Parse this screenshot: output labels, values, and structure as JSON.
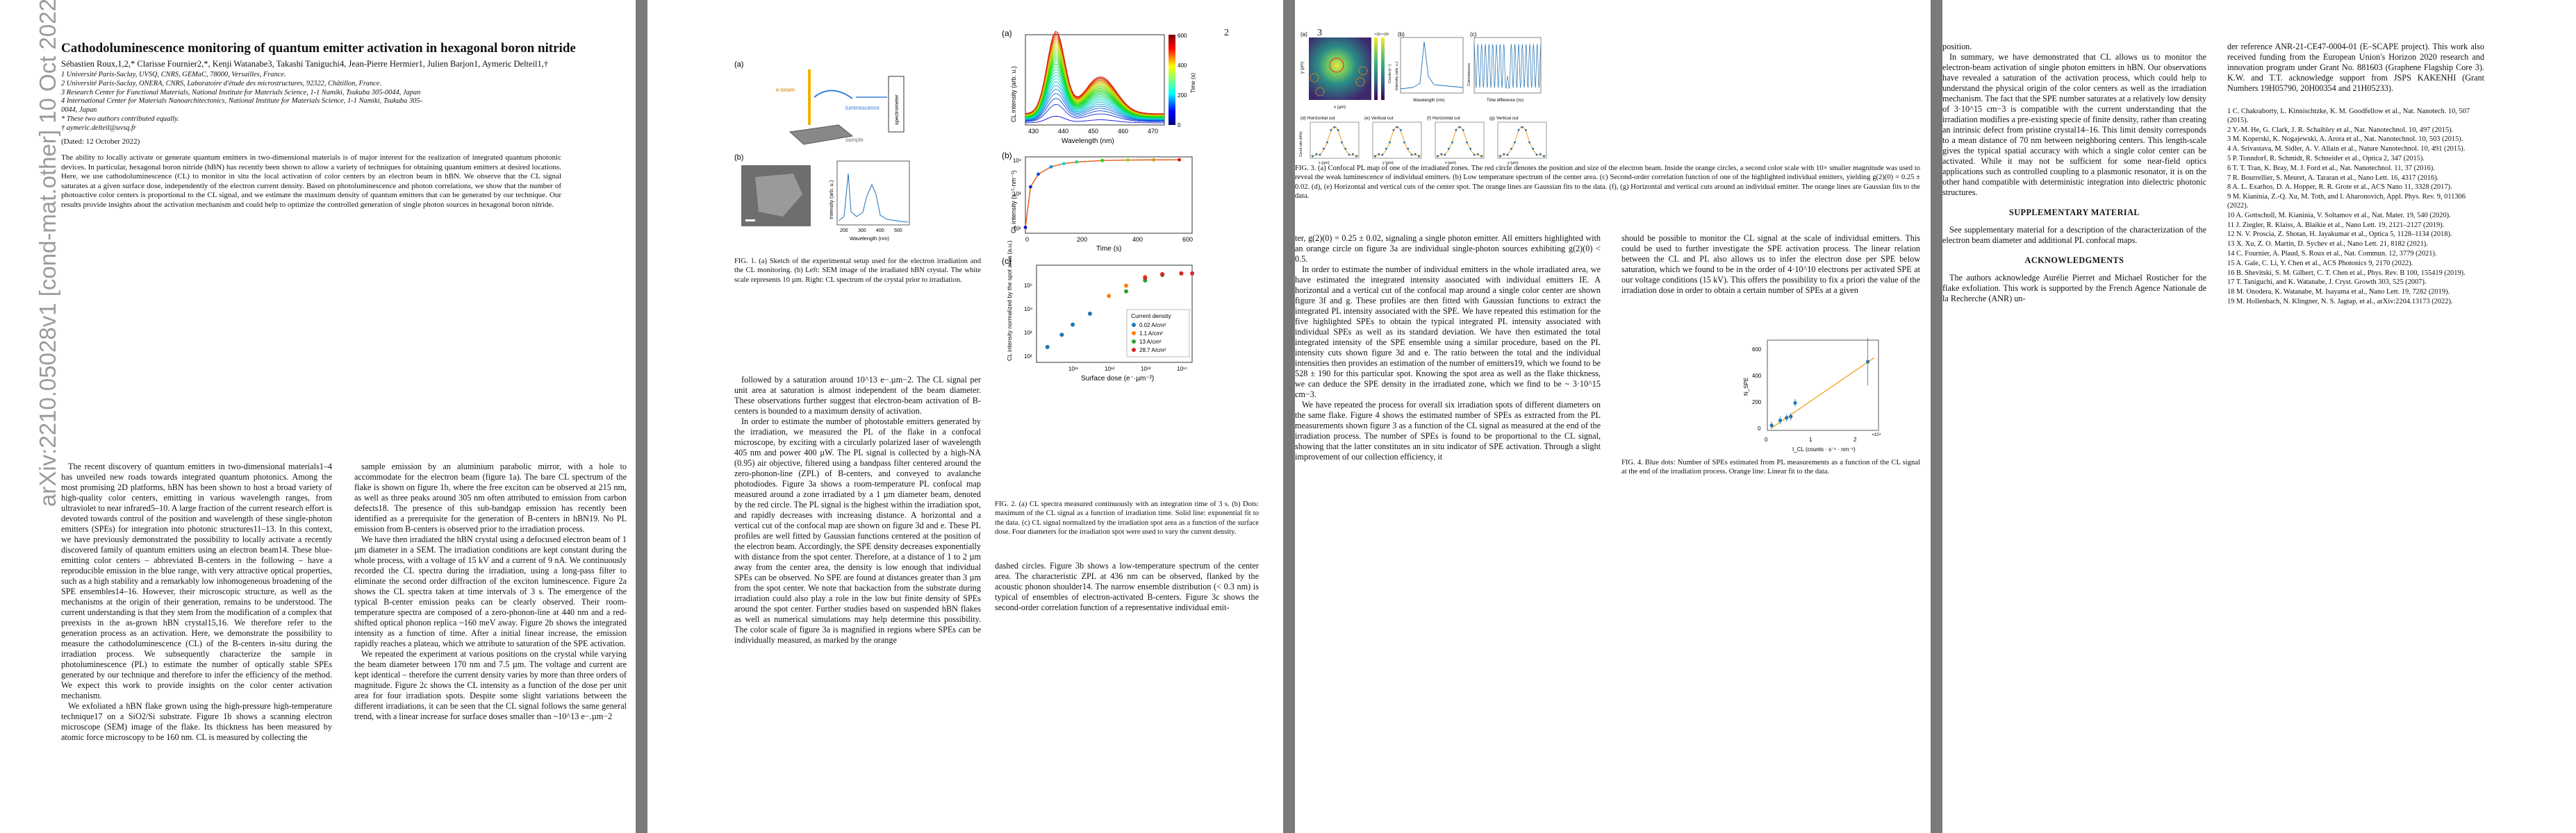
{
  "arxiv_stamp": "arXiv:2210.05028v1  [cond-mat.other]  10 Oct 2022",
  "page_numbers": [
    "2",
    "3"
  ],
  "title": "Cathodoluminescence monitoring of quantum emitter activation in hexagonal boron nitride",
  "authors": "Sébastien Roux,1,2,* Clarisse Fournier2,*, Kenji Watanabe3, Takashi Taniguchi4, Jean-Pierre Hermier1, Julien Barjon1, Aymeric Delteil1,†",
  "affiliations": [
    "1 Université Paris-Saclay, UVSQ, CNRS, GEMaC, 78000, Versailles, France.",
    "2 Université Paris-Saclay, ONERA, CNRS, Laboratoire d'étude des microstructures, 92322, Châtillon, France.",
    "3 Research Center for Functional Materials, National Institute for Materials Science, 1-1 Namiki, Tsukuba 305-0044, Japan",
    "4 International Center for Materials Nanoarchitectonics, National Institute for Materials Science, 1-1 Namiki, Tsukuba 305-0044, Japan",
    "* These two authors contributed equally.",
    "† aymeric.delteil@uvsq.fr"
  ],
  "dated": "(Dated: 12 October 2022)",
  "abstract": "The ability to locally activate or generate quantum emitters in two-dimensional materials is of major interest for the realization of integrated quantum photonic devices. In particular, hexagonal boron nitride (hBN) has recently been shown to allow a variety of techniques for obtaining quantum emitters at desired locations. Here, we use cathodoluminescence (CL) to monitor in situ the local activation of color centers by an electron beam in hBN. We observe that the CL signal saturates at a given surface dose, independently of the electron current density. Based on photoluminescence and photon correlations, we show that the number of photoactive color centers is proportional to the CL signal, and we estimate the maximum density of quantum emitters that can be generated by our technique. Our results provide insights about the activation mechanism and could help to optimize the controlled generation of single photon sources in hexagonal boron nitride.",
  "body_col1": [
    "The recent discovery of quantum emitters in two-dimensional materials1–4 has unveiled new roads towards integrated quantum photonics. Among the most promising 2D platforms, hBN has been shown to host a broad variety of high-quality color centers, emitting in various wavelength ranges, from ultraviolet to near infrared5–10. A large fraction of the current research effort is devoted towards control of the position and wavelength of these single-photon emitters (SPEs) for integration into photonic structures11–13. In this context, we have previously demonstrated the possibility to locally activate a recently discovered family of quantum emitters using an electron beam14. These blue-emitting color centers – abbreviated B-centers in the following – have a reproducible emission in the blue range, with very attractive optical properties, such as a high stability and a remarkably low inhomogeneous broadening of the SPE ensembles14–16. However, their microscopic structure, as well as the mechanisms at the origin of their generation, remains to be understood. The current understanding is that they stem from the modification of a complex that preexists in the as-grown hBN crystal15,16. We therefore refer to the generation process as an activation. Here, we demonstrate the possibility to measure the cathodoluminescence (CL) of the B-centers in-situ during the irradiation process. We subsequently characterize the sample in photoluminescence (PL) to estimate the number of optically stable SPEs generated by our technique and therefore to infer the efficiency of the method. We expect this work to provide insights on the color center activation mechanism.",
    "We exfoliated a hBN flake grown using the high-pressure high-temperature technique17 on a SiO2/Si substrate. Figure 1b shows a scanning electron microscope (SEM) image of the flake. Its thickness has been measured by atomic force microscopy to be 160 nm. CL is measured by collecting the"
  ],
  "body_col2": [
    "sample emission by an aluminium parabolic mirror, with a hole to accommodate for the electron beam (figure 1a). The bare CL spectrum of the flake is shown on figure 1b, where the free exciton can be observed at 215 nm, as well as three peaks around 305 nm often attributed to emission from carbon defects18. The presence of this sub-bandgap emission has recently been identified as a prerequisite for the generation of B-centers in hBN19. No PL emission from B-centers is observed prior to the irradiation process.",
    "We have then irradiated the hBN crystal using a defocused electron beam of 1 µm diameter in a SEM. The irradiation conditions are kept constant during the whole process, with a voltage of 15 kV and a current of 9 nA. We continuously recorded the CL spectra during the irradiation, using a long-pass filter to eliminate the second order diffraction of the exciton luminescence. Figure 2a shows the CL spectra taken at time intervals of 3 s. The emergence of the typical B-center emission peaks can be clearly observed. Their room-temperature spectra are composed of a zero-phonon-line at 440 nm and a red-shifted optical phonon replica ~160 meV away. Figure 2b shows the integrated intensity as a function of time. After a initial linear increase, the emission rapidly reaches a plateau, which we attribute to saturation of the SPE activation.",
    "We repeated the experiment at various positions on the crystal while varying the beam diameter between 170 nm and 7.5 µm. The voltage and current are kept identical – therefore the current density varies by more than three orders of magnitude. Figure 2c shows the CL intensity as a function of the dose per unit area for four irradiation spots. Despite some slight variations between the different irradiations, it can be seen that the CL signal follows the same general trend, with a linear increase for surface doses smaller than ~10^13 e−.µm−2"
  ],
  "fig1_caption": "FIG. 1. (a) Sketch of the experimental setup used for the electron irradiation and the CL monitoring. (b) Left: SEM image of the irradiated hBN crystal. The white scale represents 10 µm. Right: CL spectrum of the crystal prior to irradiation.",
  "fig1_labels": {
    "a": "(a)",
    "b": "(b)",
    "ebeam": "e-beam",
    "lum": "luminescence",
    "sample": "sample",
    "spectro": "spectrometer",
    "ylabel": "Intensity (arb. u.)",
    "xlabel": "Wavelength (nm)",
    "xticks": [
      "200",
      "300",
      "400",
      "500"
    ]
  },
  "body_col3": [
    "followed by a saturation around 10^13 e−.µm−2. The CL signal per unit area at saturation is almost independent of the beam diameter. These observations further suggest that electron-beam activation of B-centers is bounded to a maximum density of activation.",
    "In order to estimate the number of photostable emitters generated by the irradiation, we measured the PL of the flake in a confocal microscope, by exciting with a circularly polarized laser of wavelength 405 nm and power 400 µW. The PL signal is collected by a high-NA (0.95) air objective, filtered using a bandpass filter centered around the zero-phonon-line (ZPL) of B-centers, and conveyed to avalanche photodiodes. Figure 3a shows a room-temperature PL confocal map measured around a zone irradiated by a 1 µm diameter beam, denoted by the red circle. The PL signal is the highest within the irradiation spot, and rapidly decreases with increasing distance. A horizontal and a vertical cut of the confocal map are shown on figure 3d and e. These PL profiles are well fitted by Gaussian functions centered at the position of the electron beam. Accordingly, the SPE density decreases exponentially with distance from the spot center. Therefore, at a distance of 1 to 2 µm away from the center area, the density is low enough that individual SPEs can be observed. No SPE are found at distances greater than 3 µm from the spot center. We note that backaction from the substrate during irradiation could also play a role in the low but finite density of SPEs around the spot center. Further studies based on suspended hBN flakes as well as numerical simulations may help determine this possibility. The color scale of figure 3a is magnified in regions where SPEs can be individually measured, as marked by the orange"
  ],
  "fig2_caption": "FIG. 2. (a) CL spectra measured continuously with an integration time of 3 s. (b) Dots: maximum of the CL signal as a function of irradiation time. Solid line: exponential fit to the data. (c) CL signal normalized by the irradiation spot area as a function of the surface dose. Four diameters for the irradiation spot were used to vary the current density.",
  "page2_col4": [
    "dashed circles. Figure 3b shows a low-temperature spectrum of the center area. The characteristic ZPL at 436 nm can be observed, flanked by the acoustic phonon shoulder14. The narrow ensemble distribution (< 0.3 nm) is typical of ensembles of electron-activated B-centers. Figure 3c shows the second-order correlation function of a representative individual emit-"
  ],
  "fig3_caption": "FIG. 3. (a) Confocal PL map of one of the irradiated zones. The red circle denotes the position and size of the electron beam. Inside the orange circles, a second color scale with 10× smaller magnitude was used to reveal the weak luminescence of individual emitters. (b) Low temperature spectrum of the center area. (c) Second-order correlation function of one of the highlighted individual emitters, yielding g(2)(0) = 0.25 ± 0.02. (d), (e) Horizontal and vertical cuts of the center spot. The orange lines are Gaussian fits to the data. (f), (g) Horizontal and vertical cuts around an individual emitter. The orange lines are Gaussian fits to the data.",
  "body_col5": [
    "ter, g(2)(0) = 0.25 ± 0.02, signaling a single photon emitter. All emitters highlighted with an orange circle on figure 3a are individual single-photon sources exhibiting g(2)(0) < 0.5.",
    "In order to estimate the number of individual emitters in the whole irradiated area, we have estimated the integrated intensity associated with individual emitters IE. A horizontal and a vertical cut of the confocal map around a single color center are shown figure 3f and g. These profiles are then fitted with Gaussian functions to extract the integrated PL intensity associated with the SPE. We have repeated this estimation for the five highlighted SPEs to obtain the typical integrated PL intensity associated with individual SPEs as well as its standard deviation. We have then estimated the total integrated intensity of the SPE ensemble using a similar procedure, based on the PL intensity cuts shown figure 3d and e. The ratio between the total and the individual intensities then provides an estimation of the number of emitters19, which we found to be 528 ± 190 for this particular spot. Knowing the spot area as well as the flake thickness, we can deduce the SPE density in the irradiated zone, which we find to be ~ 3·10^15 cm−3.",
    "We have repeated the process for overall six irradiation spots of different diameters on the same flake. Figure 4 shows the estimated number of SPEs as extracted from the PL measurements shown figure 3 as a function of the CL signal as measured at the end of the irradiation process. The number of SPEs is found to be proportional to the CL signal, showing that the latter constitutes an in situ indicator of SPE activation. Through a slight improvement of our collection efficiency, it"
  ],
  "body_col6": [
    "should be possible to monitor the CL signal at the scale of individual emitters. This could be used to further investigate the SPE activation process. The linear relation between the CL and PL also allows us to infer the electron dose per SPE below saturation, which we found to be in the order of 4·10^10 electrons per activated SPE at our voltage conditions (15 kV). This offers the possibility to fix a priori the value of the irradiation dose in order to obtain a certain number of SPEs at a given"
  ],
  "fig4_caption": "FIG. 4. Blue dots: Number of SPEs estimated from PL measurements as a function of the CL signal at the end of the irradiation process. Orange line: Linear fit to the data.",
  "page3_colA": [
    "position.",
    "In summary, we have demonstrated that CL allows us to monitor the electron-beam activation of single photon emitters in hBN. Our observations have revealed a saturation of the activation process, which could help to understand the physical origin of the color centers as well as the irradiation mechanism. The fact that the SPE number saturates at a relatively low density of 3·10^15 cm−3 is compatible with the current understanding that the irradiation modifies a pre-existing specie of finite density, rather than creating an intrinsic defect from pristine crystal14–16. This limit density corresponds to a mean distance of 70 nm between neighboring centers. This length-scale gives the typical spatial accuracy with which a single color center can be activated. While it may not be sufficient for some near-field optics applications such as controlled coupling to a plasmonic resonator, it is on the other hand compatible with deterministic integration into dielectric photonic structures."
  ],
  "supp_heading": "SUPPLEMENTARY MATERIAL",
  "supp_text": "See supplementary material for a description of the characterization of the electron beam diameter and additional PL confocal maps.",
  "ack_heading": "ACKNOWLEDGMENTS",
  "ack_text": "The authors acknowledge Aurélie Pierret and Michael Rosticher for the flake exfoliation. This work is supported by the French Agence Nationale de la Recherche (ANR) un-",
  "page3_colB_top": "der reference ANR-21-CE47-0004-01 (E–SCAPE project). This work also received funding from the European Union's Horizon 2020 research and innovation program under Grant No. 881603 (Graphene Flagship Core 3). K.W. and T.T. acknowledge support from JSPS KAKENHI (Grant Numbers 19H05790, 20H00354 and 21H05233).",
  "references": [
    "1 C. Chakraborty, L. Kinnischtzke, K. M. Goodfellow et al., Nat. Nanotech. 10, 507 (2015).",
    "2 Y.-M. He, G. Clark, J. R. Schaibley et al., Nat. Nanotechnol. 10, 497 (2015).",
    "3 M. Koperski, K. Nogajewski, A. Arora et al., Nat. Nanotechnol. 10, 503 (2015).",
    "4 A. Srivastava, M. Sidler, A. V. Allain et al., Nature Nanotechnol. 10, 491 (2015).",
    "5 P. Tonndorf, R. Schmidt, R. Schneider et al., Optica 2, 347 (2015).",
    "6 T. T. Tran, K. Bray, M. J. Ford et al., Nat. Nanotechnol. 11, 37 (2016).",
    "7 R. Bourrellier, S. Meuret, A. Tararan et al., Nano Lett. 16, 4317 (2016).",
    "8 A. L. Exarhos, D. A. Hopper, R. R. Grote et al., ACS Nano 11, 3328 (2017).",
    "9 M. Kianinia, Z.-Q. Xu, M. Toth, and I. Aharonovich, Appl. Phys. Rev. 9, 011306 (2022).",
    "10 A. Gottscholl, M. Kianinia, V. Soltamov et al., Nat. Mater. 19, 540 (2020).",
    "11 J. Ziegler, R. Klaiss, A. Blaikie et al., Nano Lett. 19, 2121–2127 (2019).",
    "12 N. V. Proscia, Z. Shotan, H. Jayakumar et al., Optica 5, 1128–1134 (2018).",
    "13 X. Xu, Z. O. Martin, D. Sychev et al., Nano Lett. 21, 8182 (2021).",
    "14 C. Fournier, A. Plaud, S. Roux et al., Nat. Commun. 12, 3779 (2021).",
    "15 A. Gale, C. Li, Y. Chen et al., ACS Photonics 9, 2170 (2022).",
    "16 B. Shevitski, S. M. Gilbert, C. T. Chen et al., Phys. Rev. B 100, 155419 (2019).",
    "17 T. Taniguchi, and K. Watanabe, J. Cryst. Growth 303, 525 (2007).",
    "18 M. Onodera, K. Watanabe, M. Isayama et al., Nano Lett. 19, 7282 (2019).",
    "19 M. Hollenbach, N. Klingner, N. S. Jagtap, et al., arXiv:2204.13173 (2022)."
  ],
  "fig2_labels": {
    "a": "(a)",
    "b": "(b)",
    "c": "(c)",
    "a_ylabel": "CL intensity (arb. u.)",
    "a_xlabel": "Wavelength (nm)",
    "a_xticks": [
      "430",
      "440",
      "450",
      "460",
      "470"
    ],
    "cbar_label": "Time (s)",
    "cbar_ticks": [
      "0",
      "100",
      "200",
      "300",
      "400",
      "500",
      "600"
    ],
    "b_ylabel": "CL intensity (s⁻¹·nm⁻¹)",
    "b_xlabel": "Time (s)",
    "b_xticks": [
      "0",
      "100",
      "200",
      "300",
      "400",
      "500",
      "600"
    ],
    "b_yticks": [
      "10²",
      "10³",
      "10⁴"
    ],
    "c_ylabel": "CL intensity normalized by the spot area (a.u.)",
    "c_xlabel": "Surface dose (e⁻·µm⁻²)",
    "c_xticks": [
      "10¹¹",
      "10¹²",
      "10¹³",
      "10¹⁴"
    ],
    "c_yticks": [
      "10²",
      "10³",
      "10⁴",
      "10⁵"
    ],
    "legend_title": "Current density",
    "legend": [
      "0.02 A/cm²",
      "1.1 A/cm²",
      "13 A/cm²",
      "28.7 A/cm²"
    ]
  },
  "fig3_labels": {
    "a": "(a)",
    "b": "(b)",
    "c": "(c)",
    "d": "(d) Horizontal cut",
    "e": "(e) Vertical cut",
    "f": "(f) Horizontal cut",
    "g": "(g) Vertical cut",
    "a_x": "x (µm)",
    "a_y": "y (µm)",
    "b_x": "Wavelength (nm)",
    "b_y": "Intensity (arb. u.)",
    "c_x": "Time difference (ns)",
    "c_y": "Coincidences",
    "cbar_title": "×10⁴",
    "cbar2_title": "×10³",
    "cbar_label": "Counts (s⁻¹)",
    "cut_y": "Count rate (kHz)",
    "cut_x": "x (µm)",
    "cut_xv": "y (µm)"
  },
  "fig4_labels": {
    "xlabel": "I_CL (counts · s⁻¹ · nm⁻¹)",
    "ylabel": "N_SPE",
    "xticks": [
      "0",
      "1",
      "2"
    ],
    "yticks": [
      "0",
      "200",
      "400",
      "600"
    ],
    "xscale": "×10⁴"
  },
  "chart_data": [
    {
      "type": "line",
      "title": "",
      "xlabel": "Time (s)",
      "ylabel": "CL intensity (s⁻¹·nm⁻¹)",
      "x": [
        0,
        20,
        50,
        100,
        150,
        200,
        300,
        400,
        500,
        600
      ],
      "y": [
        150,
        2500,
        6000,
        10000,
        12500,
        14000,
        15500,
        16000,
        16200,
        16300
      ],
      "yscale": "log"
    },
    {
      "type": "scatter",
      "xlabel": "Surface dose (e⁻·µm⁻²)",
      "ylabel": "CL intensity normalized by the spot area (a.u.)",
      "xscale": "log",
      "yscale": "log",
      "series": [
        {
          "name": "0.02 A/cm²",
          "x": [
            20000000000.0,
            50000000000.0,
            100000000000.0,
            300000000000.0
          ],
          "y": [
            200,
            600,
            1500,
            4000
          ]
        },
        {
          "name": "1.1 A/cm²",
          "x": [
            1000000000000.0,
            3000000000000.0,
            10000000000000.0,
            30000000000000.0,
            100000000000000.0
          ],
          "y": [
            20000,
            50000,
            110000,
            140000,
            150000
          ]
        },
        {
          "name": "13 A/cm²",
          "x": [
            3000000000000.0,
            10000000000000.0,
            30000000000000.0,
            100000000000000.0
          ],
          "y": [
            30000,
            80000,
            130000,
            150000
          ]
        },
        {
          "name": "28.7 A/cm²",
          "x": [
            10000000000000.0,
            30000000000000.0,
            100000000000000.0,
            200000000000000.0
          ],
          "y": [
            100000,
            140000,
            150000,
            150000
          ]
        }
      ]
    },
    {
      "type": "scatter",
      "xlabel": "I_CL (counts · s⁻¹ · nm⁻¹)",
      "ylabel": "N_SPE",
      "x": [
        0.0,
        0.2,
        0.35,
        0.45,
        0.55,
        2.25
      ],
      "y": [
        20,
        60,
        80,
        90,
        200,
        528
      ]
    }
  ]
}
